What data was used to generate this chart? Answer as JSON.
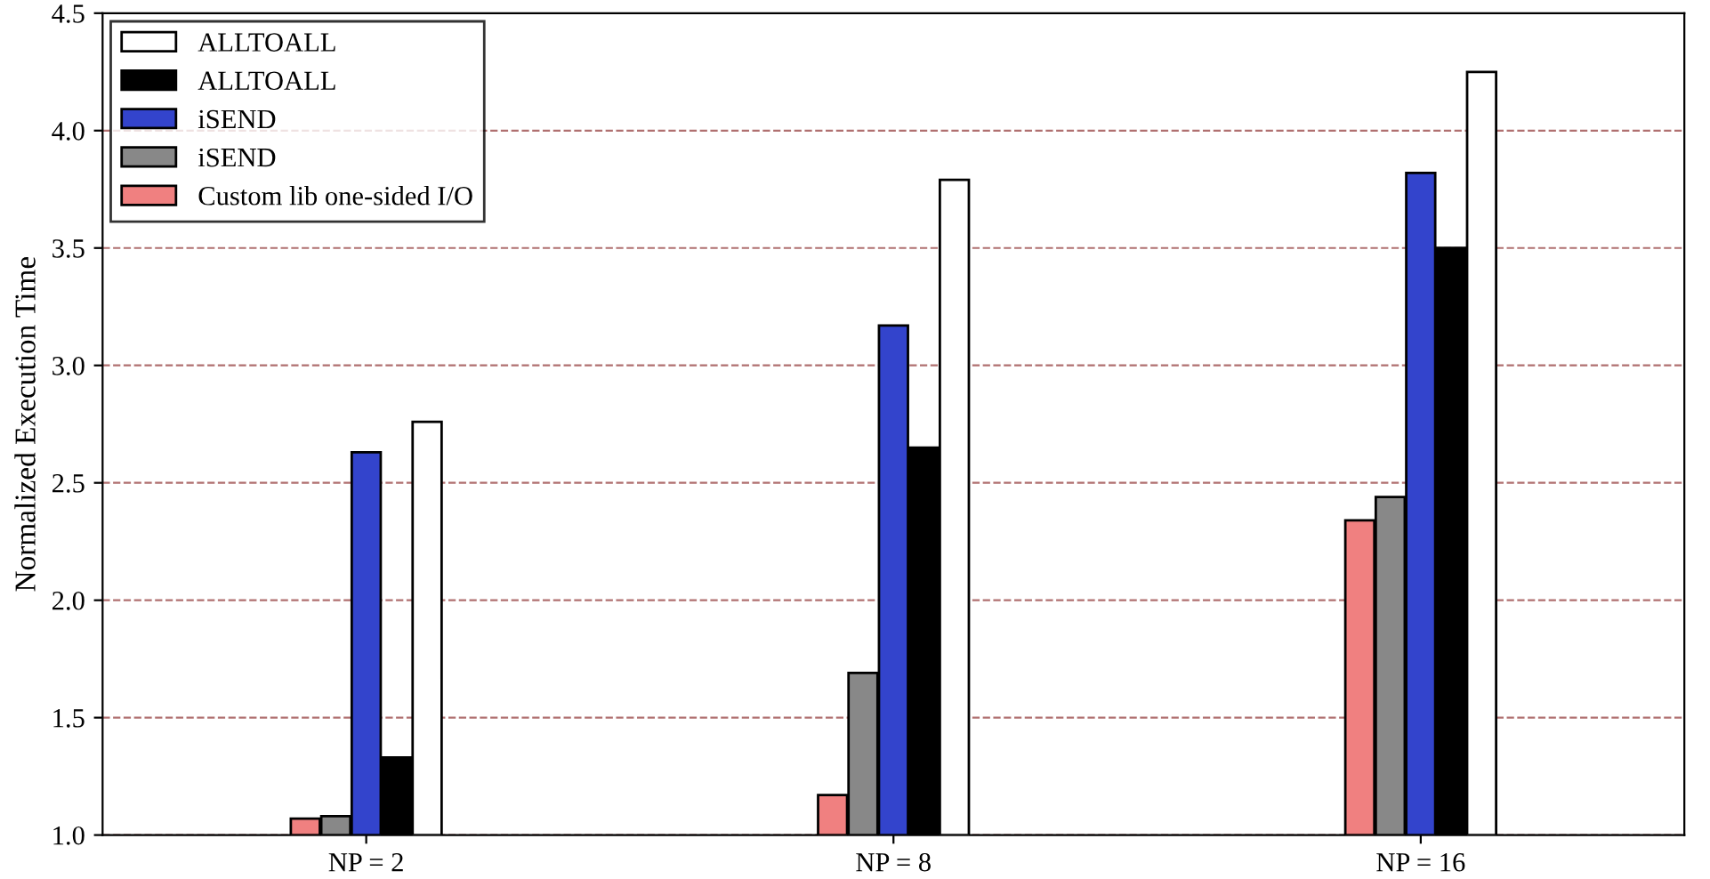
{
  "chart_data": {
    "type": "bar",
    "ylabel": "Normalized Execution Time",
    "categories": [
      "NP = 2",
      "NP = 8",
      "NP = 16"
    ],
    "series": [
      {
        "name": "Custom lib one-sided I/O",
        "color": "#f08080",
        "values": [
          1.07,
          1.17,
          2.34
        ]
      },
      {
        "name": "iSEND",
        "color": "#888888",
        "values": [
          1.08,
          1.69,
          2.44
        ]
      },
      {
        "name": "iSEND",
        "color": "#3344cc",
        "values": [
          2.63,
          3.17,
          3.82
        ]
      },
      {
        "name": "ALLTOALL",
        "color": "#000000",
        "values": [
          1.33,
          2.65,
          3.5
        ]
      },
      {
        "name": "ALLTOALL",
        "color": "#ffffff",
        "values": [
          2.76,
          3.79,
          4.25
        ]
      }
    ],
    "ylim": [
      1.0,
      4.5
    ],
    "yticks": [
      {
        "value": 1.0,
        "label": "1.0"
      },
      {
        "value": 1.5,
        "label": "1.5"
      },
      {
        "value": 2.0,
        "label": "2.0"
      },
      {
        "value": 2.5,
        "label": "2.5"
      },
      {
        "value": 3.0,
        "label": "3.0"
      },
      {
        "value": 3.5,
        "label": "3.5"
      },
      {
        "value": 4.0,
        "label": "4.0"
      },
      {
        "value": 4.5,
        "label": "4.5"
      }
    ],
    "grid": "y",
    "legend": "top left"
  }
}
